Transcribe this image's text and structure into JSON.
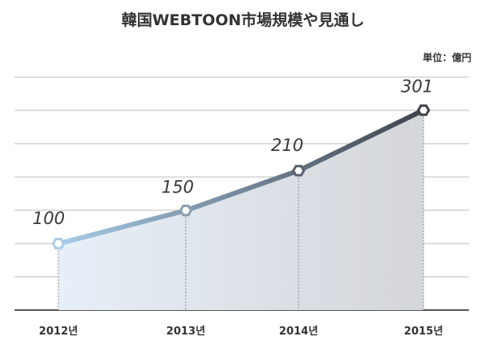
{
  "chart_data": {
    "type": "line",
    "title": "韓国WEBTOON市場規模や見通し",
    "unit_label": "単位：億円",
    "categories": [
      "2012년",
      "2013년",
      "2014년",
      "2015년"
    ],
    "values": [
      100,
      150,
      210,
      301
    ],
    "data_labels": [
      "100",
      "150",
      "210",
      "301"
    ],
    "ylim": [
      0,
      350
    ],
    "grid": true,
    "legend": "none",
    "colors": {
      "line_start": "#a8cce8",
      "line_end": "#3f434c",
      "area_start": "#e7eff8",
      "area_end": "#d4d6da",
      "grid": "#bdbdbd",
      "axis": "#555555"
    }
  }
}
